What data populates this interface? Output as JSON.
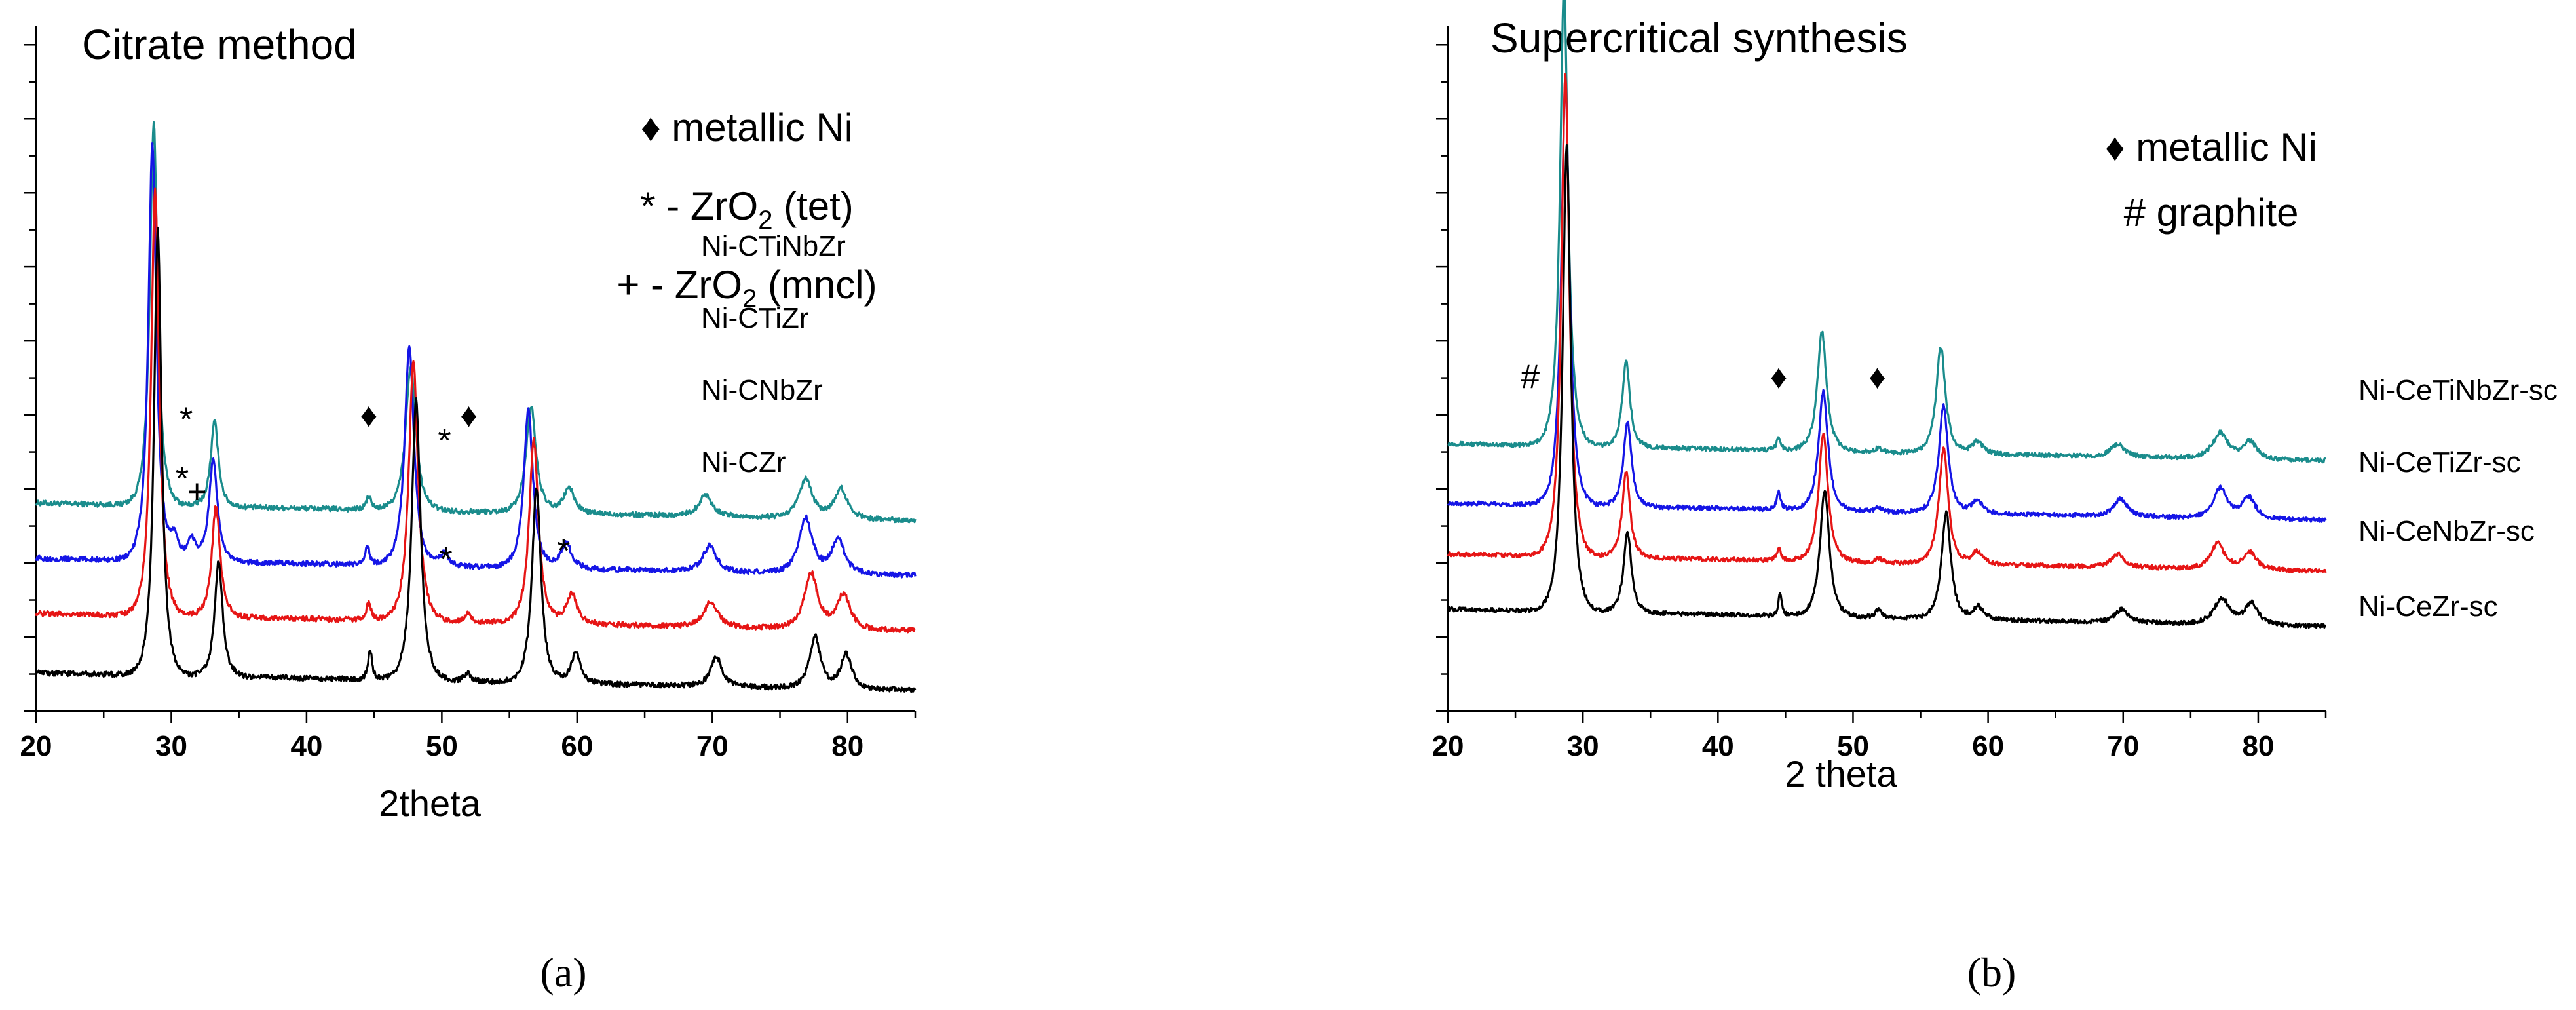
{
  "chart_data": [
    {
      "type": "line",
      "title": "Citrate method",
      "xlabel": "2theta",
      "ylabel": "",
      "xlim": [
        20,
        85
      ],
      "xticks": [
        20,
        30,
        40,
        50,
        60,
        70,
        80
      ],
      "subfigure_label": "(a)",
      "legend_lines": [
        {
          "symbol": "♦",
          "text": "metallic Ni"
        },
        {
          "symbol": "*",
          "text": "- ZrO",
          "sub": "2",
          "suffix": " (tet)"
        },
        {
          "symbol": "+",
          "text": "- ZrO",
          "sub": "2",
          "suffix": " (mncl)"
        }
      ],
      "series": [
        {
          "name": "Ni-CTiNbZr",
          "color": "#1a8c8c",
          "baseline": 0.45,
          "noise": 0.006,
          "peaks": [
            [
              28.7,
              0.9,
              0.35
            ],
            [
              33.2,
              0.2,
              0.35
            ],
            [
              44.6,
              0.03,
              0.22
            ],
            [
              47.7,
              0.34,
              0.45
            ],
            [
              56.6,
              0.25,
              0.45
            ],
            [
              59.4,
              0.06,
              0.5
            ],
            [
              69.5,
              0.05,
              0.6
            ],
            [
              76.9,
              0.09,
              0.6
            ],
            [
              79.5,
              0.07,
              0.6
            ]
          ]
        },
        {
          "name": "Ni-CTiZr",
          "color": "#1515e6",
          "baseline": 0.32,
          "noise": 0.006,
          "peaks": [
            [
              28.6,
              0.98,
              0.36
            ],
            [
              30.2,
              0.05,
              0.4
            ],
            [
              31.5,
              0.05,
              0.4
            ],
            [
              33.1,
              0.24,
              0.38
            ],
            [
              44.5,
              0.04,
              0.22
            ],
            [
              47.6,
              0.52,
              0.42
            ],
            [
              50.2,
              0.03,
              0.4
            ],
            [
              56.4,
              0.37,
              0.42
            ],
            [
              59.2,
              0.06,
              0.5
            ],
            [
              69.8,
              0.06,
              0.6
            ],
            [
              76.9,
              0.13,
              0.6
            ],
            [
              79.3,
              0.08,
              0.6
            ]
          ]
        },
        {
          "name": "Ni-CNbZr",
          "color": "#e61515",
          "baseline": 0.19,
          "noise": 0.006,
          "peaks": [
            [
              28.8,
              1.0,
              0.36
            ],
            [
              33.3,
              0.26,
              0.38
            ],
            [
              44.6,
              0.04,
              0.22
            ],
            [
              47.9,
              0.61,
              0.42
            ],
            [
              51.9,
              0.02,
              0.3
            ],
            [
              56.8,
              0.43,
              0.42
            ],
            [
              59.6,
              0.07,
              0.5
            ],
            [
              69.9,
              0.06,
              0.6
            ],
            [
              77.3,
              0.13,
              0.6
            ],
            [
              79.7,
              0.08,
              0.6
            ]
          ]
        },
        {
          "name": "Ni-CZr",
          "color": "#000000",
          "baseline": 0.05,
          "noise": 0.006,
          "peaks": [
            [
              29.0,
              1.05,
              0.34
            ],
            [
              33.5,
              0.27,
              0.36
            ],
            [
              44.7,
              0.07,
              0.18
            ],
            [
              48.1,
              0.66,
              0.4
            ],
            [
              51.9,
              0.02,
              0.3
            ],
            [
              57.0,
              0.46,
              0.4
            ],
            [
              59.9,
              0.07,
              0.45
            ],
            [
              70.3,
              0.07,
              0.5
            ],
            [
              77.6,
              0.12,
              0.5
            ],
            [
              79.9,
              0.08,
              0.5
            ]
          ]
        }
      ],
      "annotations": [
        {
          "text": "*",
          "x": 31.1,
          "y": 0.66
        },
        {
          "text": "♦",
          "x": 44.6,
          "y": 0.67
        },
        {
          "text": "♦",
          "x": 52.0,
          "y": 0.67
        },
        {
          "text": "*",
          "x": 50.2,
          "y": 0.61
        },
        {
          "text": "*",
          "x": 30.8,
          "y": 0.52
        },
        {
          "text": "+",
          "x": 31.9,
          "y": 0.49
        },
        {
          "text": "*",
          "x": 50.3,
          "y": 0.33
        },
        {
          "text": "*",
          "x": 59.0,
          "y": 0.35
        }
      ]
    },
    {
      "type": "line",
      "title": "Supercritical synthesis",
      "xlabel": "2 theta",
      "ylabel": "",
      "xlim": [
        20,
        85
      ],
      "xticks": [
        20,
        30,
        40,
        50,
        60,
        70,
        80
      ],
      "subfigure_label": "(b)",
      "legend_lines": [
        {
          "symbol": "♦",
          "text": "metallic Ni"
        },
        {
          "symbol": "#",
          "text": "graphite"
        }
      ],
      "series": [
        {
          "name": "Ni-CeTiNbZr-sc",
          "color": "#1a8c8c",
          "baseline": 0.59,
          "noise": 0.005,
          "peaks": [
            [
              28.6,
              1.08,
              0.36
            ],
            [
              33.2,
              0.2,
              0.35
            ],
            [
              44.5,
              0.03,
              0.18
            ],
            [
              47.7,
              0.28,
              0.42
            ],
            [
              51.9,
              0.01,
              0.3
            ],
            [
              56.5,
              0.25,
              0.42
            ],
            [
              59.2,
              0.03,
              0.5
            ],
            [
              69.6,
              0.03,
              0.6
            ],
            [
              77.2,
              0.06,
              0.7
            ],
            [
              79.4,
              0.04,
              0.6
            ]
          ]
        },
        {
          "name": "Ni-CeTiZr-sc",
          "color": "#1515e6",
          "baseline": 0.45,
          "noise": 0.005,
          "peaks": [
            [
              28.7,
              1.0,
              0.36
            ],
            [
              33.3,
              0.2,
              0.36
            ],
            [
              44.5,
              0.04,
              0.18
            ],
            [
              47.8,
              0.28,
              0.42
            ],
            [
              51.9,
              0.01,
              0.3
            ],
            [
              56.7,
              0.25,
              0.42
            ],
            [
              59.2,
              0.03,
              0.5
            ],
            [
              69.8,
              0.04,
              0.6
            ],
            [
              77.2,
              0.07,
              0.6
            ],
            [
              79.3,
              0.05,
              0.6
            ]
          ]
        },
        {
          "name": "Ni-CeNbZr-sc",
          "color": "#e61515",
          "baseline": 0.33,
          "noise": 0.005,
          "peaks": [
            [
              28.7,
              1.13,
              0.36
            ],
            [
              33.2,
              0.2,
              0.36
            ],
            [
              44.5,
              0.03,
              0.18
            ],
            [
              47.8,
              0.3,
              0.42
            ],
            [
              51.9,
              0.01,
              0.3
            ],
            [
              56.7,
              0.27,
              0.42
            ],
            [
              59.2,
              0.03,
              0.5
            ],
            [
              69.6,
              0.03,
              0.6
            ],
            [
              77.0,
              0.06,
              0.6
            ],
            [
              79.4,
              0.04,
              0.6
            ]
          ]
        },
        {
          "name": "Ni-CeZr-sc",
          "color": "#000000",
          "baseline": 0.2,
          "noise": 0.005,
          "peaks": [
            [
              28.8,
              1.1,
              0.36
            ],
            [
              33.3,
              0.19,
              0.36
            ],
            [
              44.6,
              0.05,
              0.16
            ],
            [
              47.9,
              0.3,
              0.42
            ],
            [
              51.9,
              0.02,
              0.3
            ],
            [
              56.9,
              0.25,
              0.42
            ],
            [
              59.3,
              0.03,
              0.5
            ],
            [
              69.9,
              0.03,
              0.6
            ],
            [
              77.3,
              0.06,
              0.7
            ],
            [
              79.5,
              0.05,
              0.6
            ]
          ]
        }
      ],
      "annotations": [
        {
          "text": "#",
          "x": 26.1,
          "y": 0.76
        },
        {
          "text": "♦",
          "x": 44.5,
          "y": 0.76
        },
        {
          "text": "♦",
          "x": 51.8,
          "y": 0.76
        }
      ]
    }
  ]
}
